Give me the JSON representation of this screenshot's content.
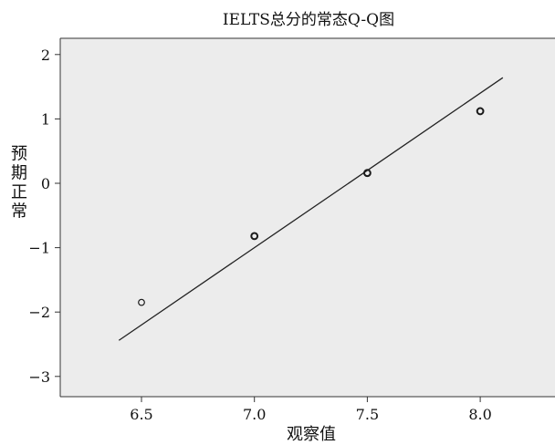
{
  "chart_data": {
    "type": "scatter",
    "title": "IELTS总分的常态Q-Q图",
    "xlabel": "观察值",
    "ylabel": "预期正常",
    "xlim": [
      5.95,
      8.3
    ],
    "ylim": [
      -3.3,
      2.3
    ],
    "xticks": [
      6.5,
      7.0,
      7.5,
      8.0
    ],
    "xtick_labels": [
      "6.5",
      "7.0",
      "7.5",
      "8.0"
    ],
    "yticks": [
      2,
      1,
      0,
      -1,
      -2,
      -3
    ],
    "ytick_labels": [
      "2",
      "1",
      "0",
      "−1",
      "−2",
      "−3"
    ],
    "grid": false,
    "series": [
      {
        "x": [
          6.5,
          7.0,
          7.5,
          8.0
        ],
        "y": [
          -1.85,
          -0.82,
          0.16,
          1.12
        ],
        "marker": "open-circle",
        "emphasis": [
          false,
          true,
          true,
          true
        ]
      }
    ],
    "reference_line": {
      "x": [
        6.4,
        8.1
      ],
      "y": [
        -2.44,
        1.64
      ]
    },
    "colors": {
      "plot_bg": "#ececec",
      "axis": "#333333",
      "marker": "#1a1a1a",
      "line": "#222222"
    }
  }
}
